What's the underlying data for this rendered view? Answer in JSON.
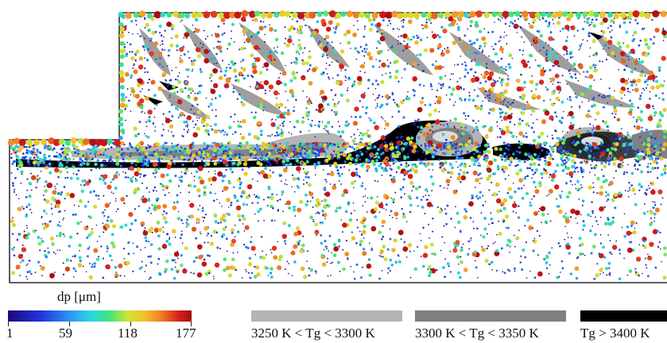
{
  "colorbar": {
    "label": "dp [μm]",
    "ticks": [
      "1",
      "59",
      "118",
      "177"
    ],
    "min": 1,
    "max": 177
  },
  "temperature_legend": [
    {
      "label": "3250 K < Tg < 3300 K",
      "color": "#b4b4b4"
    },
    {
      "label": "3300 K < Tg < 3350 K",
      "color": "#808080"
    },
    {
      "label": "Tg > 3400 K",
      "color": "#000000"
    }
  ],
  "colors": {
    "particle_low": "#1a0a7a",
    "particle_high": "#a50e0e",
    "domain_outline": "#000000"
  }
}
